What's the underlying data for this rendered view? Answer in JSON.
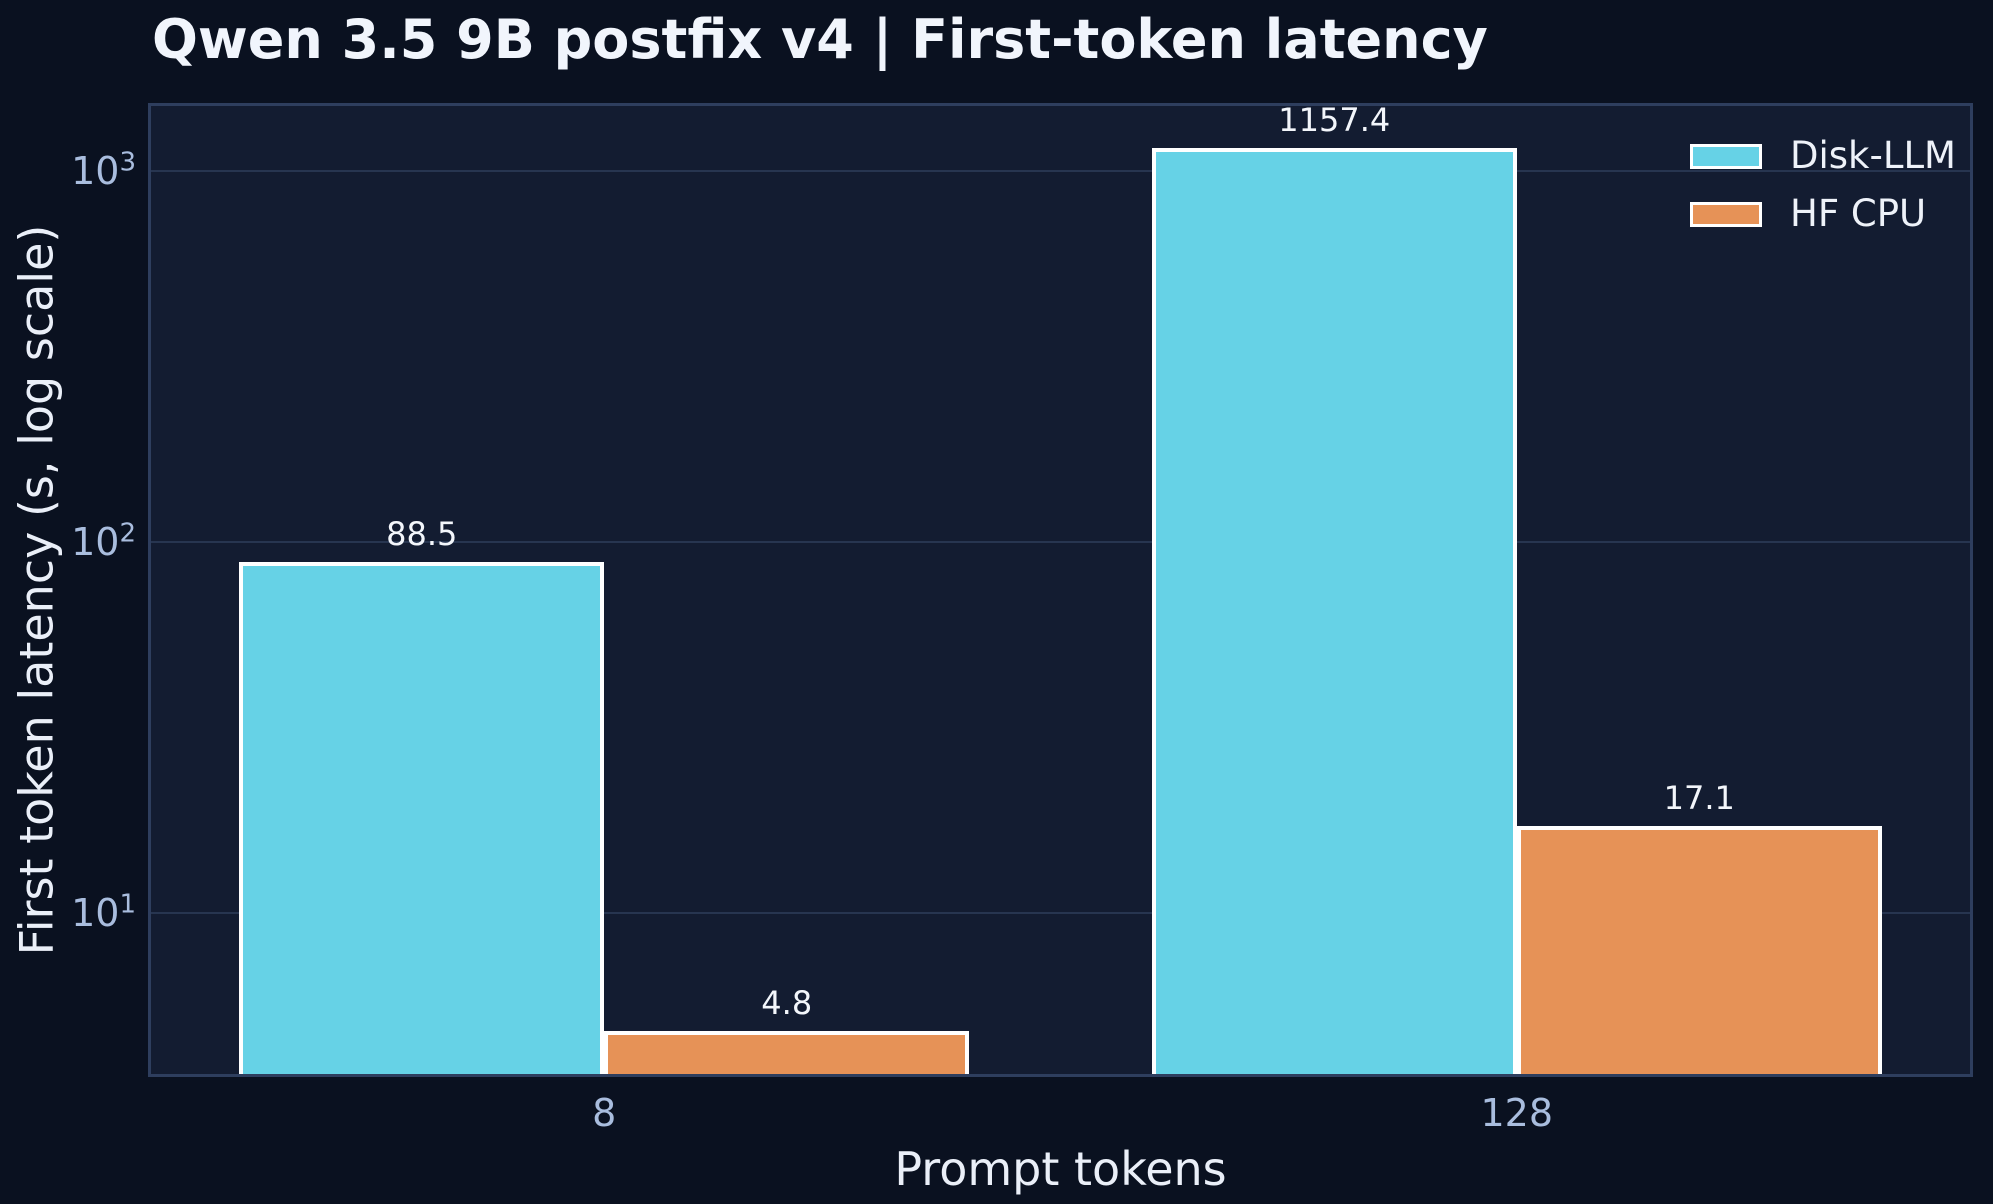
{
  "figure": {
    "background": "#0a1120",
    "plot_background": "#131c31",
    "grid_color": "#273550",
    "spine_color": "#2e3e5e",
    "tick_label_color": "#a9bdde",
    "text_color": "#eaeff8",
    "bar_edge_color": "#ffffff"
  },
  "chart_data": {
    "type": "bar",
    "title": "Qwen 3.5 9B postfix v4 | First-token latency",
    "categories": [
      "8",
      "128"
    ],
    "series": [
      {
        "name": "Disk-LLM",
        "color": "#66d2e6",
        "values": [
          88.5,
          1157.4
        ],
        "labels": [
          "88.5",
          "1157.4"
        ]
      },
      {
        "name": "HF CPU",
        "color": "#e69257",
        "values": [
          4.8,
          17.1
        ],
        "labels": [
          "4.8",
          "17.1"
        ]
      }
    ],
    "xlabel": "Prompt tokens",
    "ylabel": "First token latency (s, log scale)",
    "yscale": "log",
    "ylim": [
      3.6,
      1530
    ],
    "yticks": [
      10,
      100,
      1000
    ],
    "grid": "horizontal",
    "legend_position": "upper-right",
    "bar_width_fraction": 0.2,
    "group_centers_fraction": [
      0.25,
      0.75
    ]
  }
}
